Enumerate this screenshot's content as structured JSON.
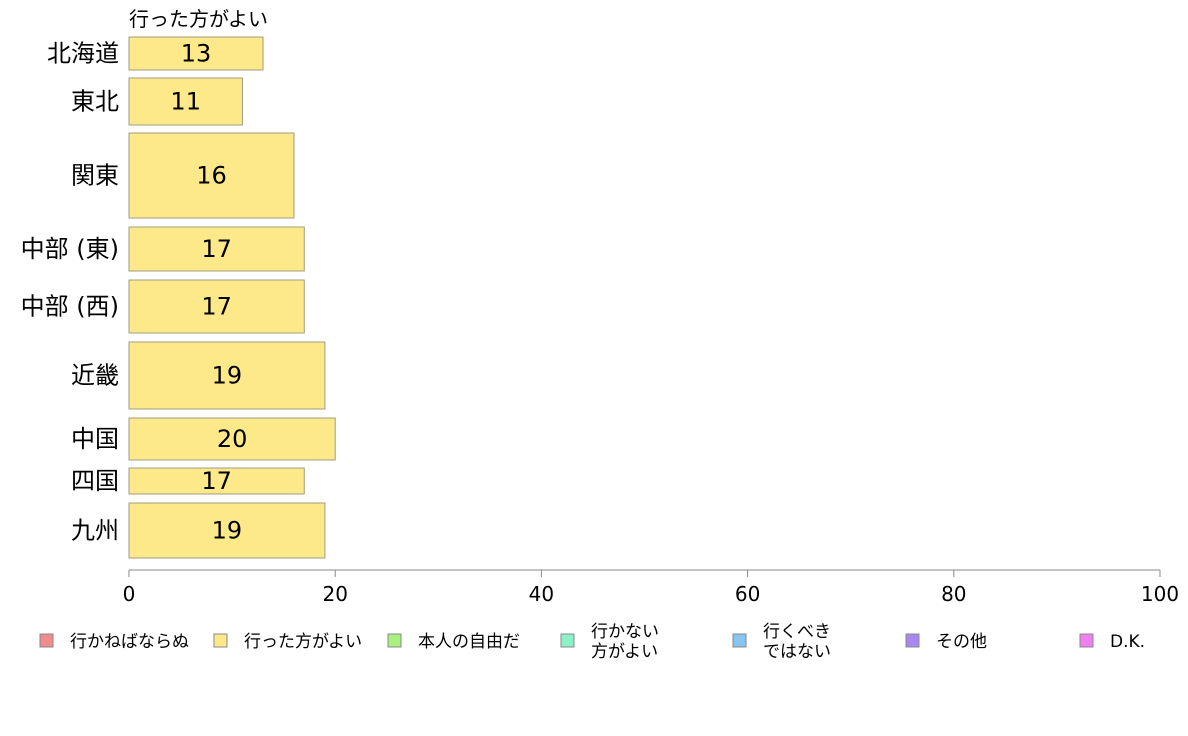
{
  "chart_data": {
    "type": "bar",
    "orientation": "horizontal",
    "series_title": "行った方がよい",
    "categories": [
      "北海道",
      "東北",
      "関東",
      "中部 (東)",
      "中部 (西)",
      "近畿",
      "中国",
      "四国",
      "九州"
    ],
    "values": [
      13,
      11,
      16,
      17,
      17,
      19,
      20,
      17,
      19
    ],
    "data_labels": [
      "13",
      "11",
      "16",
      "17",
      "17",
      "19",
      "20",
      "17",
      "19"
    ],
    "xlim": [
      0,
      100
    ],
    "xticks": [
      0,
      20,
      40,
      60,
      80,
      100
    ],
    "xtick_labels": [
      "0",
      "20",
      "40",
      "60",
      "80",
      "100"
    ],
    "grid": false,
    "bar_color": "#fde98a",
    "bar_edge_color": "#a09c80",
    "legend": {
      "placement": "bottom",
      "items": [
        {
          "lines": [
            "行かねばならぬ"
          ],
          "color": "#f08c8c"
        },
        {
          "lines": [
            "行った方がよい"
          ],
          "color": "#fde98a"
        },
        {
          "lines": [
            "本人の自由だ"
          ],
          "color": "#a8f080"
        },
        {
          "lines": [
            "行かない",
            "方がよい"
          ],
          "color": "#8cf0c8"
        },
        {
          "lines": [
            "行くべき",
            "ではない"
          ],
          "color": "#88c4f0"
        },
        {
          "lines": [
            "その他"
          ],
          "color": "#a888f0"
        },
        {
          "lines": [
            "D.K."
          ],
          "color": "#f080f0"
        }
      ]
    }
  }
}
